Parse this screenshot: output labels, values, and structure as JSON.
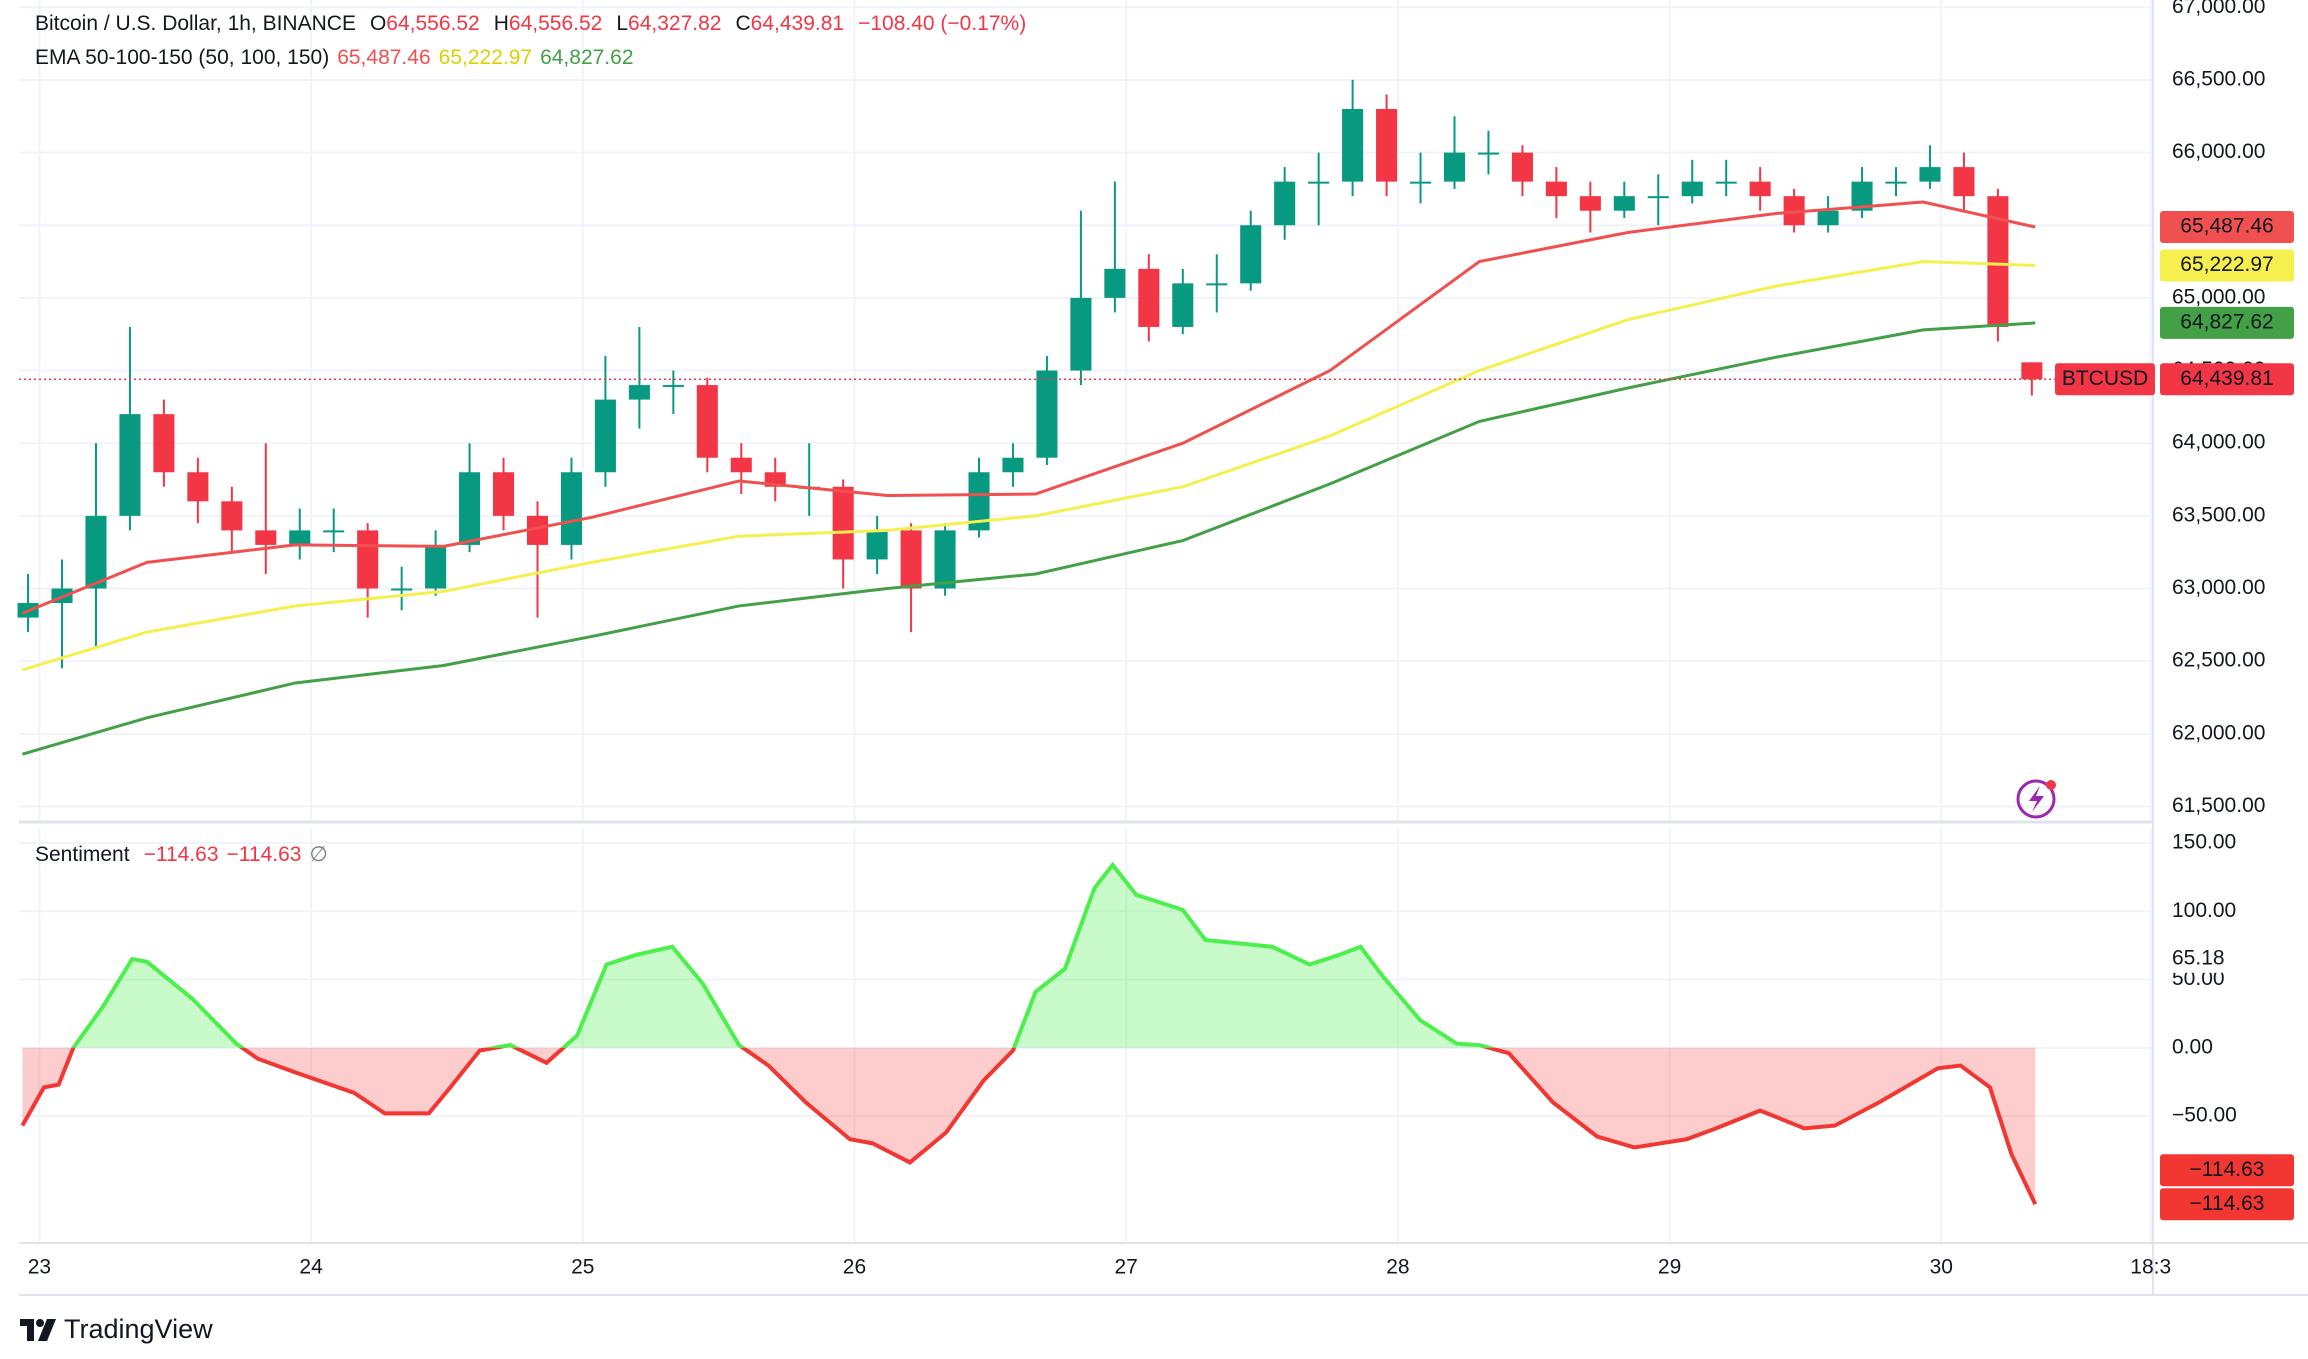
{
  "chart_data": [
    {
      "type": "candlestick",
      "legend": {
        "symbol": "Bitcoin / U.S. Dollar, 1h, BINANCE",
        "fields": [
          {
            "key": "O",
            "value": "64,556.52"
          },
          {
            "key": "H",
            "value": "64,556.52"
          },
          {
            "key": "L",
            "value": "64,327.82"
          },
          {
            "key": "C",
            "value": "64,439.81"
          }
        ],
        "change": "−108.40 (−0.17%)"
      },
      "indicator": "EMA 50-100-150 (50, 100, 150)",
      "symbol_tag": "BTCUSD",
      "x": [
        -1,
        2,
        5,
        8,
        11,
        14,
        17,
        20,
        23,
        26,
        29,
        32,
        35,
        38,
        41,
        44,
        47,
        50,
        53,
        56,
        59,
        62,
        65,
        68,
        71,
        74,
        77,
        80,
        83,
        86,
        89,
        92,
        95,
        98,
        101,
        104,
        107,
        110,
        113,
        116,
        119,
        122,
        125,
        128,
        131,
        134,
        137,
        140,
        143,
        146,
        149,
        152,
        155,
        158,
        161,
        164,
        167,
        170,
        173,
        176
      ],
      "open": [
        62800,
        62900,
        63000,
        63500,
        64200,
        63800,
        63600,
        63400,
        63300,
        63400,
        63400,
        63000,
        63000,
        63300,
        63800,
        63500,
        63300,
        63800,
        64300,
        64400,
        64400,
        63900,
        63800,
        63700,
        63700,
        63200,
        63400,
        63000,
        63400,
        63800,
        63900,
        64500,
        65000,
        65200,
        64800,
        65100,
        65100,
        65500,
        65800,
        65800,
        66300,
        65800,
        65800,
        66000,
        66000,
        65800,
        65700,
        65600,
        65700,
        65700,
        65800,
        65800,
        65700,
        65500,
        65600,
        65800,
        65800,
        65900,
        65700,
        64556.52
      ],
      "high": [
        63100,
        63200,
        64000,
        64800,
        64300,
        63900,
        63700,
        64000,
        63550,
        63550,
        63450,
        63150,
        63400,
        64000,
        63900,
        63600,
        63900,
        64600,
        64800,
        64500,
        64450,
        64000,
        63900,
        64000,
        63750,
        63500,
        63450,
        63450,
        63900,
        64000,
        64600,
        65600,
        65800,
        65300,
        65200,
        65300,
        65600,
        65900,
        66000,
        66500,
        66400,
        66000,
        66250,
        66150,
        66050,
        65900,
        65800,
        65800,
        65850,
        65950,
        65950,
        65900,
        65750,
        65700,
        65900,
        65900,
        66050,
        66000,
        65750,
        64556.52
      ],
      "low": [
        62700,
        62450,
        62600,
        63400,
        63700,
        63450,
        63250,
        63100,
        63200,
        63250,
        62800,
        62850,
        62950,
        63250,
        63400,
        62800,
        63200,
        63700,
        64100,
        64200,
        63800,
        63650,
        63600,
        63500,
        63000,
        63100,
        62700,
        62950,
        63350,
        63700,
        63850,
        64400,
        64900,
        64700,
        64750,
        64900,
        65050,
        65400,
        65500,
        65700,
        65700,
        65650,
        65750,
        65850,
        65700,
        65550,
        65450,
        65550,
        65500,
        65650,
        65700,
        65600,
        65450,
        65450,
        65550,
        65700,
        65750,
        65600,
        64700,
        64327.82
      ],
      "close": [
        62900,
        63000,
        63500,
        64200,
        63800,
        63600,
        63400,
        63300,
        63400,
        63400,
        63000,
        63000,
        63300,
        63800,
        63500,
        63300,
        63800,
        64300,
        64400,
        64400,
        63900,
        63800,
        63700,
        63700,
        63200,
        63400,
        63000,
        63400,
        63800,
        63900,
        64500,
        65000,
        65200,
        64800,
        65100,
        65100,
        65500,
        65800,
        65800,
        66300,
        65800,
        65800,
        66000,
        66000,
        65800,
        65700,
        65600,
        65700,
        65700,
        65800,
        65800,
        65700,
        65500,
        65600,
        65800,
        65800,
        65900,
        65700,
        64800,
        64439.81
      ],
      "last_label": "64,439.81",
      "up_color": "#089981",
      "down_color": "#f23645",
      "series": [
        {
          "color": "#f0504f",
          "x": [
            -1.5,
            9.5,
            22.6,
            35.7,
            48.8,
            61.8,
            74.9,
            88,
            101,
            114,
            127.2,
            140.3,
            153.3,
            166.4,
            176.3
          ],
          "values": [
            62830,
            63180,
            63300,
            63290,
            63490,
            63740,
            63640,
            63650,
            64000,
            64500,
            65250,
            65450,
            65580,
            65660,
            65487.46
          ],
          "last_label": "65,487.46"
        },
        {
          "color": "#f5f04e",
          "x": [
            -1.5,
            9.5,
            22.6,
            35.7,
            48.8,
            61.8,
            74.9,
            88,
            101,
            114,
            127.2,
            140.3,
            153.3,
            166.4,
            176.3
          ],
          "values": [
            62440,
            62700,
            62880,
            62980,
            63180,
            63360,
            63400,
            63500,
            63700,
            64050,
            64500,
            64850,
            65080,
            65250,
            65222.97
          ],
          "last_label": "65,222.97"
        },
        {
          "color": "#43a047",
          "x": [
            -1.5,
            9.5,
            22.6,
            35.7,
            48.8,
            61.8,
            74.9,
            88,
            101,
            114,
            127.2,
            140.3,
            153.3,
            166.4,
            176.3
          ],
          "values": [
            61860,
            62110,
            62350,
            62470,
            62670,
            62880,
            63000,
            63100,
            63330,
            63720,
            64150,
            64380,
            64590,
            64780,
            64827.62
          ],
          "last_label": "64,827.62"
        }
      ],
      "xlim": [
        -1.8,
        186.7
      ],
      "xticks": [
        {
          "value": 0,
          "label": "23"
        },
        {
          "value": 24,
          "label": "24"
        },
        {
          "value": 48,
          "label": "25"
        },
        {
          "value": 72,
          "label": "26"
        },
        {
          "value": 96,
          "label": "27"
        },
        {
          "value": 120,
          "label": "28"
        },
        {
          "value": 144,
          "label": "29"
        },
        {
          "value": 168,
          "label": "30"
        },
        {
          "value": 186.5,
          "label": "18:3"
        }
      ],
      "ylim": [
        61400,
        67050
      ],
      "yticks": [
        {
          "value": 61500,
          "label": "61,500.00"
        },
        {
          "value": 62000,
          "label": "62,000.00"
        },
        {
          "value": 62500,
          "label": "62,500.00"
        },
        {
          "value": 63000,
          "label": "63,000.00"
        },
        {
          "value": 63500,
          "label": "63,500.00"
        },
        {
          "value": 64000,
          "label": "64,000.00"
        },
        {
          "value": 64500,
          "label": "64,500.00"
        },
        {
          "value": 65000,
          "label": "65,000.00"
        },
        {
          "value": 65500,
          "label": "65,500.00"
        },
        {
          "value": 66000,
          "label": "66,000.00"
        },
        {
          "value": 66500,
          "label": "66,500.00"
        },
        {
          "value": 67000,
          "label": "67,000.00"
        }
      ],
      "grid": true
    },
    {
      "type": "line",
      "title": "Sentiment",
      "legend_extra": "∅",
      "x": [
        -1.5,
        0.4,
        1.7,
        3.0,
        5.6,
        8.2,
        9.5,
        13.5,
        17.4,
        19.3,
        22.6,
        27.8,
        30.5,
        34.4,
        36.3,
        38.9,
        41.6,
        44.8,
        47.5,
        50.1,
        52.7,
        55.9,
        58.6,
        61.8,
        64.4,
        67.7,
        71.6,
        73.6,
        76.9,
        80.1,
        83.4,
        86,
        88,
        90.6,
        93.2,
        94.8,
        96.9,
        101,
        103,
        108.9,
        112.2,
        114.8,
        116.7,
        118.7,
        122,
        125.2,
        127.2,
        129.8,
        133.7,
        137.6,
        140.9,
        145.5,
        148.1,
        152,
        155.9,
        158.6,
        162.5,
        167.7,
        169.7,
        172.3,
        174.2,
        176.3
      ],
      "values": [
        -57,
        -29,
        -27,
        0,
        30,
        65,
        63,
        36,
        3,
        -8,
        -18,
        -33,
        -48,
        -48,
        -29,
        -2,
        2,
        -11,
        9,
        61,
        68,
        74,
        47,
        2,
        -13,
        -40,
        -67,
        -70,
        -84,
        -62,
        -24,
        -2,
        41,
        58,
        117,
        134,
        112,
        101,
        79,
        74,
        61,
        68,
        74,
        52,
        20,
        3,
        2,
        -4,
        -40,
        -65,
        -73,
        -67,
        -59,
        -46,
        -59,
        -57,
        -40,
        -15,
        -13,
        -29,
        -78,
        -114.63
      ],
      "last_labels": [
        "−114.63",
        "−114.63"
      ],
      "marker": {
        "value": 65.18,
        "label": "65.18"
      },
      "positive_color": "#4cef4c",
      "negative_color": "#f23632",
      "ylim": [
        -143,
        161
      ],
      "yticks": [
        {
          "value": -50,
          "label": "−50.00"
        },
        {
          "value": 0,
          "label": "0.00"
        },
        {
          "value": 50,
          "label": "50.00"
        },
        {
          "value": 100,
          "label": "100.00"
        },
        {
          "value": 150,
          "label": "150.00"
        }
      ],
      "grid": true
    }
  ]
}
